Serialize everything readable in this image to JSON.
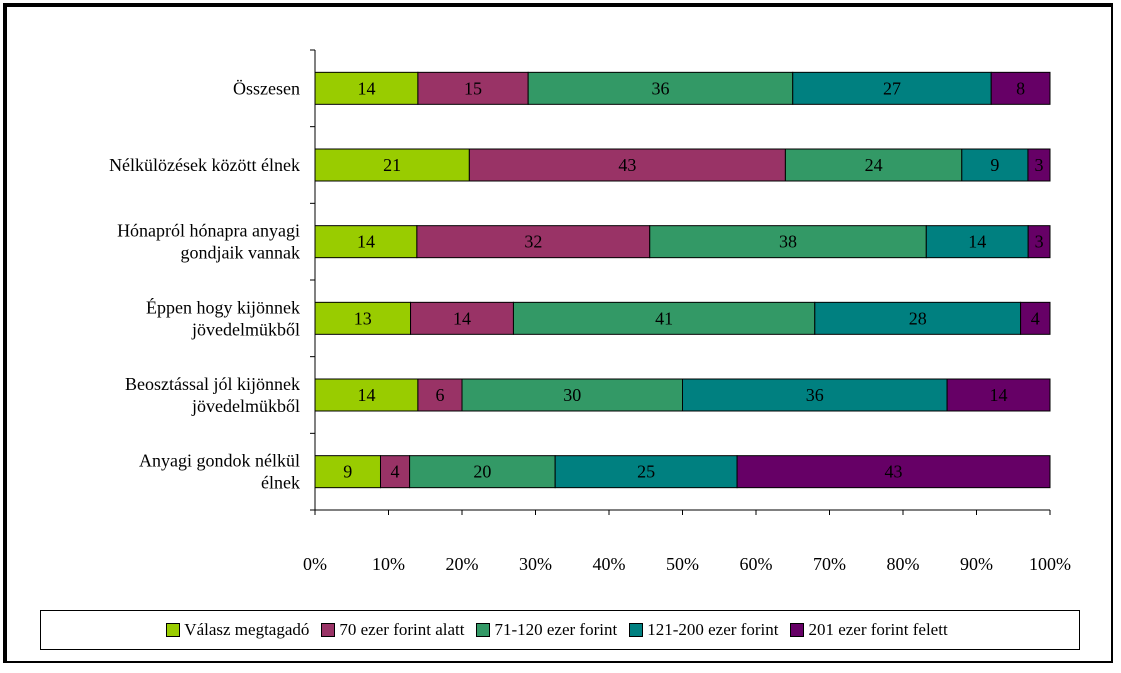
{
  "chart_data": {
    "type": "bar",
    "orientation": "horizontal",
    "stacked": true,
    "percent_stacked": true,
    "categories": [
      "Összesen",
      "Nélkülözések között élnek",
      "Hónapról hónapra anyagi gondjaik vannak",
      "Éppen hogy kijönnek jövedelmükből",
      "Beosztással jól kijönnek jövedelmükből",
      "Anyagi gondok nélkül élnek"
    ],
    "category_lines": [
      [
        "Összesen"
      ],
      [
        "Nélkülözések között élnek"
      ],
      [
        "Hónapról hónapra anyagi",
        "gondjaik vannak"
      ],
      [
        "Éppen hogy kijönnek",
        "jövedelmükből"
      ],
      [
        "Beosztással jól kijönnek",
        "jövedelmükből"
      ],
      [
        "Anyagi gondok nélkül",
        "élnek"
      ]
    ],
    "series": [
      {
        "name": "Válasz megtagadó",
        "color": "#99cc00",
        "values": [
          14,
          21,
          14,
          13,
          14,
          9
        ]
      },
      {
        "name": "70 ezer forint alatt",
        "color": "#993366",
        "values": [
          15,
          43,
          32,
          14,
          6,
          4
        ]
      },
      {
        "name": "71-120 ezer forint",
        "color": "#339966",
        "values": [
          36,
          24,
          38,
          41,
          30,
          20
        ]
      },
      {
        "name": "121-200 ezer forint",
        "color": "#008080",
        "values": [
          27,
          9,
          14,
          28,
          36,
          25
        ]
      },
      {
        "name": "201 ezer forint felett",
        "color": "#660066",
        "values": [
          8,
          3,
          3,
          4,
          14,
          43
        ]
      }
    ],
    "x_ticks": [
      "0%",
      "10%",
      "20%",
      "30%",
      "40%",
      "50%",
      "60%",
      "70%",
      "80%",
      "90%",
      "100%"
    ],
    "xlim": [
      0,
      100
    ],
    "grid": false,
    "legend_position": "bottom"
  }
}
